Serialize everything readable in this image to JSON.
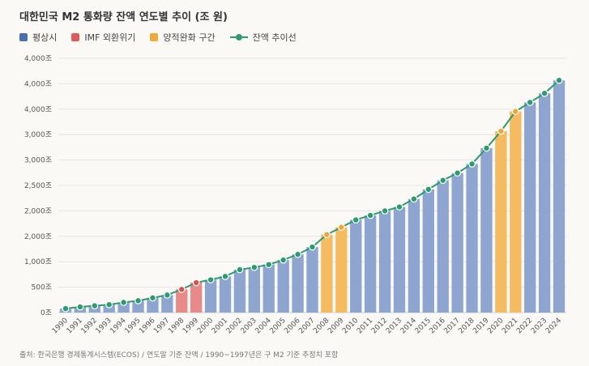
{
  "chart_data": {
    "type": "bar",
    "title": "대한민국 M2 통화량 잔액 연도별 추이 (조 원)",
    "categories": [
      "1990",
      "1991",
      "1992",
      "1993",
      "1994",
      "1995",
      "1996",
      "1997",
      "1998",
      "1999",
      "2000",
      "2001",
      "2002",
      "2003",
      "2004",
      "2005",
      "2006",
      "2007",
      "2008",
      "2009",
      "2010",
      "2011",
      "2012",
      "2013",
      "2014",
      "2015",
      "2016",
      "2017",
      "2018",
      "2019",
      "2020",
      "2021",
      "2022",
      "2023",
      "2024"
    ],
    "values": [
      70,
      100,
      120,
      140,
      180,
      210,
      260,
      310,
      410,
      530,
      580,
      640,
      760,
      800,
      850,
      930,
      1030,
      1160,
      1380,
      1510,
      1640,
      1720,
      1800,
      1870,
      2010,
      2180,
      2340,
      2470,
      2630,
      2910,
      3210,
      3560,
      3720,
      3880,
      4110
    ],
    "category_groups": [
      "normal",
      "normal",
      "normal",
      "normal",
      "normal",
      "normal",
      "normal",
      "normal",
      "imf",
      "imf",
      "normal",
      "normal",
      "normal",
      "normal",
      "normal",
      "normal",
      "normal",
      "normal",
      "qe",
      "qe",
      "normal",
      "normal",
      "normal",
      "normal",
      "normal",
      "normal",
      "normal",
      "normal",
      "normal",
      "normal",
      "qe",
      "qe",
      "normal",
      "normal",
      "normal"
    ],
    "line_series_name": "잔액 추이선",
    "y_tick_labels": [
      "0조",
      "500조",
      "1,000조",
      "2,000조",
      "2,000조",
      "2,500조",
      "3,000조",
      "3,000조",
      "4,000조",
      "4,000조",
      "4,000조"
    ],
    "ylim": [
      0,
      4500
    ],
    "grid": true,
    "legend_position": "top-left",
    "legend": [
      {
        "key": "normal",
        "label": "평상시",
        "color": "#4a6fae"
      },
      {
        "key": "imf",
        "label": "IMF 외환위기",
        "color": "#e05a5a"
      },
      {
        "key": "qe",
        "label": "양적완화 구간",
        "color": "#f2a93b"
      },
      {
        "key": "line",
        "label": "잔액 추이선",
        "color": "#2e9a6f"
      }
    ],
    "bar_colors": {
      "normal": "#8ea6cf",
      "imf": "#e88a8a",
      "qe": "#f4bb60"
    },
    "point_colors": {
      "normal": "#2e9a6f",
      "imf": "#d95050",
      "qe": "#eea53a"
    },
    "line_color": "#2e9a6f"
  },
  "footer": "출처: 한국은행 경제통계시스템(ECOS) / 연도말 기준 잔액 / 1990~1997년은 구 M2 기준 추정치 포함"
}
